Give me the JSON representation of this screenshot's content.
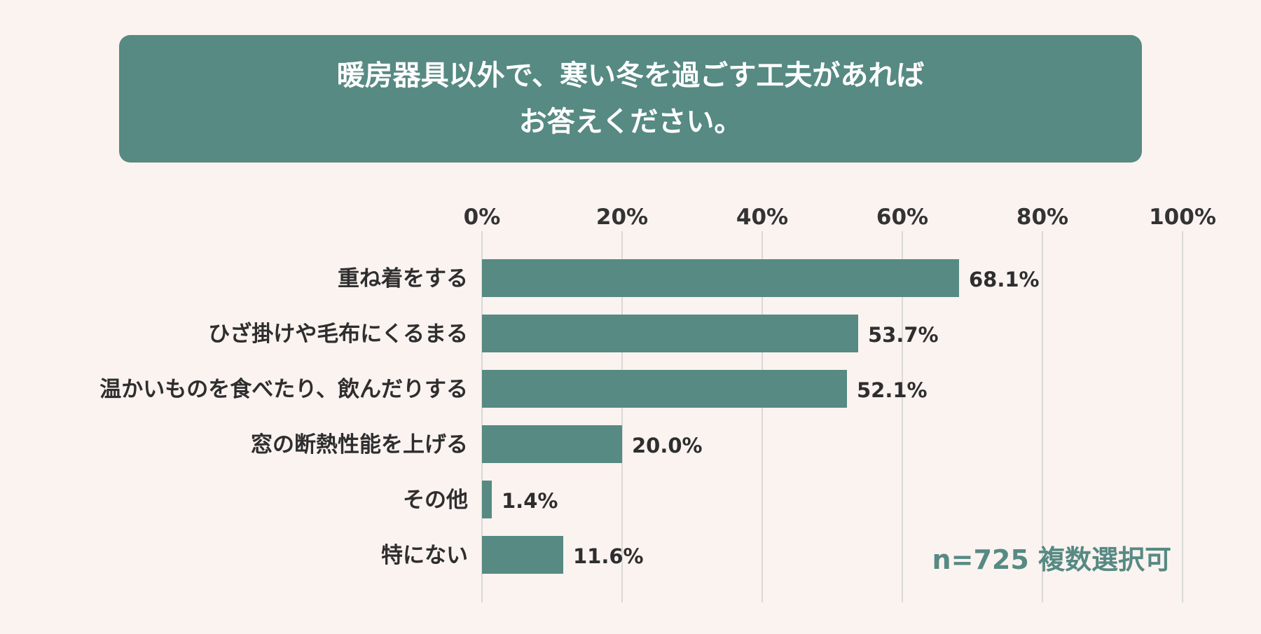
{
  "chart_data": {
    "type": "bar",
    "orientation": "horizontal",
    "title_lines": [
      "暖房器具以外で、寒い冬を過ごす工夫があれば",
      "お答えください。"
    ],
    "categories": [
      "重ね着をする",
      "ひざ掛けや毛布にくるまる",
      "温かいものを食べたり、飲んだりする",
      "窓の断熱性能を上げる",
      "その他",
      "特にない"
    ],
    "values": [
      68.1,
      53.7,
      52.1,
      20.0,
      1.4,
      11.6
    ],
    "value_labels": [
      "68.1%",
      "53.7%",
      "52.1%",
      "20.0%",
      "1.4%",
      "11.6%"
    ],
    "xlim": [
      0,
      100
    ],
    "x_ticks": [
      "0%",
      "20%",
      "40%",
      "60%",
      "80%",
      "100%"
    ],
    "x_tick_values": [
      0,
      20,
      40,
      60,
      80,
      100
    ],
    "grid": true,
    "note": "n=725 複数選択可",
    "colors": {
      "bar": "#568a83",
      "title_bg": "#568a83",
      "background": "#fbf3f0",
      "grid": "#d9d9d5",
      "note": "#568a83"
    }
  }
}
